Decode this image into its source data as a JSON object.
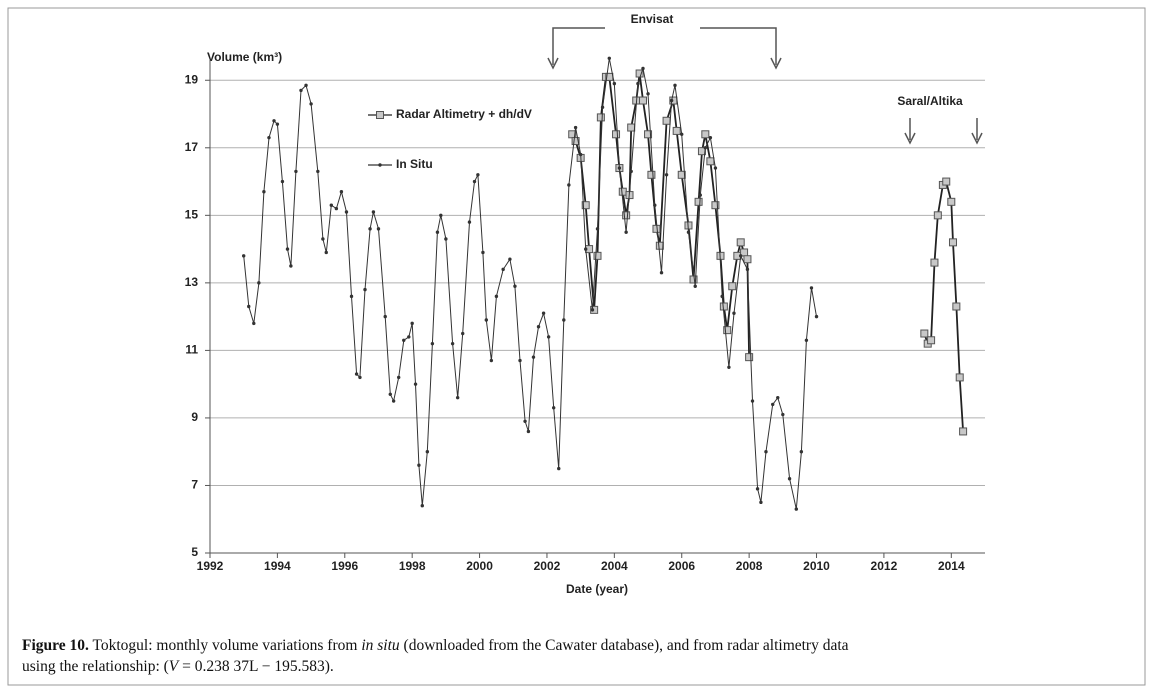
{
  "chart_data": {
    "type": "line",
    "ylabel": "Volume (km³)",
    "xlabel": "Date (year)",
    "xlim": [
      1992,
      2015
    ],
    "ylim": [
      5,
      19.6
    ],
    "xticks": [
      1992,
      1994,
      1996,
      1998,
      2000,
      2002,
      2004,
      2006,
      2008,
      2010,
      2012,
      2014
    ],
    "yticks": [
      5,
      7,
      9,
      11,
      13,
      15,
      17,
      19
    ],
    "grid": true,
    "annotations": [
      "Envisat",
      "Saral/Altika"
    ],
    "series": [
      {
        "name": "Radar Altimetry + dh/dV",
        "color": "#222222",
        "marker": "square",
        "x": [
          2002.75,
          2002.85,
          2003.0,
          2003.15,
          2003.25,
          2003.4,
          2003.5,
          2003.6,
          2003.75,
          2003.85,
          2004.05,
          2004.15,
          2004.25,
          2004.35,
          2004.45,
          2004.5,
          2004.65,
          2004.75,
          2004.85,
          2005.0,
          2005.1,
          2005.25,
          2005.35,
          2005.55,
          2005.75,
          2005.85,
          2006.0,
          2006.2,
          2006.35,
          2006.5,
          2006.6,
          2006.7,
          2006.85,
          2007.0,
          2007.15,
          2007.25,
          2007.35,
          2007.5,
          2007.65,
          2007.75,
          2007.85,
          2007.95,
          2008.0,
          2010.6,
          2013.2,
          2013.3,
          2013.4,
          2013.5,
          2013.6,
          2013.75,
          2013.85,
          2014.0,
          2014.05,
          2014.15,
          2014.25,
          2014.35
        ],
        "values": [
          17.4,
          17.2,
          16.7,
          15.3,
          14.0,
          12.2,
          13.8,
          17.9,
          19.1,
          19.1,
          17.4,
          16.4,
          15.7,
          15.0,
          15.6,
          17.6,
          18.4,
          19.2,
          18.4,
          17.4,
          16.2,
          14.6,
          14.1,
          17.8,
          18.4,
          17.5,
          16.2,
          14.7,
          13.1,
          15.4,
          16.9,
          17.4,
          16.6,
          15.3,
          13.8,
          12.3,
          11.6,
          12.9,
          13.8,
          14.2,
          13.9,
          13.7,
          10.8,
          null,
          11.5,
          11.2,
          11.3,
          13.6,
          15.0,
          15.9,
          16.0,
          15.4,
          14.2,
          12.3,
          10.2,
          8.6
        ]
      },
      {
        "name": "In Situ",
        "color": "#333333",
        "marker": "dot",
        "x": [
          1993.0,
          1993.15,
          1993.3,
          1993.45,
          1993.6,
          1993.75,
          1993.9,
          1994.0,
          1994.15,
          1994.3,
          1994.4,
          1994.55,
          1994.7,
          1994.85,
          1995.0,
          1995.2,
          1995.35,
          1995.45,
          1995.6,
          1995.75,
          1995.9,
          1996.05,
          1996.2,
          1996.35,
          1996.45,
          1996.6,
          1996.75,
          1996.85,
          1997.0,
          1997.2,
          1997.35,
          1997.45,
          1997.6,
          1997.75,
          1997.9,
          1998.0,
          1998.1,
          1998.2,
          1998.3,
          1998.45,
          1998.6,
          1998.75,
          1998.85,
          1999.0,
          1999.2,
          1999.35,
          1999.5,
          1999.7,
          1999.85,
          1999.95,
          2000.1,
          2000.2,
          2000.35,
          2000.5,
          2000.7,
          2000.9,
          2001.05,
          2001.2,
          2001.35,
          2001.45,
          2001.6,
          2001.75,
          2001.9,
          2002.05,
          2002.2,
          2002.35,
          2002.5,
          2002.65,
          2002.85,
          2003.0,
          2003.15,
          2003.35,
          2003.5,
          2003.65,
          2003.85,
          2004.0,
          2004.15,
          2004.35,
          2004.5,
          2004.7,
          2004.85,
          2005.0,
          2005.2,
          2005.4,
          2005.55,
          2005.7,
          2005.8,
          2006.0,
          2006.2,
          2006.4,
          2006.55,
          2006.7,
          2006.85,
          2007.0,
          2007.2,
          2007.4,
          2007.55,
          2007.75,
          2007.95,
          2008.1,
          2008.25,
          2008.35,
          2008.5,
          2008.7,
          2008.85,
          2009.0,
          2009.2,
          2009.4,
          2009.55,
          2009.7,
          2009.85,
          2010.0
        ],
        "values": [
          13.8,
          12.3,
          11.8,
          13.0,
          15.7,
          17.3,
          17.8,
          17.7,
          16.0,
          14.0,
          13.5,
          16.3,
          18.7,
          18.85,
          18.3,
          16.3,
          14.3,
          13.9,
          15.3,
          15.2,
          15.7,
          15.1,
          12.6,
          10.3,
          10.2,
          12.8,
          14.6,
          15.1,
          14.6,
          12.0,
          9.7,
          9.5,
          10.2,
          11.3,
          11.4,
          11.8,
          10.0,
          7.6,
          6.4,
          8.0,
          11.2,
          14.5,
          15.0,
          14.3,
          11.2,
          9.6,
          11.5,
          14.8,
          16.0,
          16.2,
          13.9,
          11.9,
          10.7,
          12.6,
          13.4,
          13.7,
          12.9,
          10.7,
          8.9,
          8.6,
          10.8,
          11.7,
          12.1,
          11.4,
          9.3,
          7.5,
          11.9,
          15.9,
          17.6,
          16.8,
          14.0,
          12.2,
          14.6,
          18.2,
          19.65,
          18.9,
          16.4,
          14.5,
          16.3,
          18.9,
          19.35,
          18.6,
          15.3,
          13.3,
          16.2,
          18.4,
          18.85,
          17.4,
          14.5,
          12.9,
          15.6,
          17.0,
          17.3,
          16.4,
          12.6,
          10.5,
          12.1,
          13.8,
          13.4,
          9.5,
          6.9,
          6.5,
          8.0,
          9.4,
          9.6,
          9.1,
          7.2,
          6.3,
          8.0,
          11.3,
          12.85,
          12.0
        ]
      }
    ]
  },
  "caption": {
    "label": "Figure 10.",
    "text_1": " Toktogul: monthly volume variations from ",
    "italic_1": "in situ",
    "text_2": " (downloaded from the Cawater database), and from radar altimetry data",
    "text_3": "using the relationship: (",
    "italic_2": "V",
    "text_4": " = 0.238 37L − 195.583)."
  }
}
